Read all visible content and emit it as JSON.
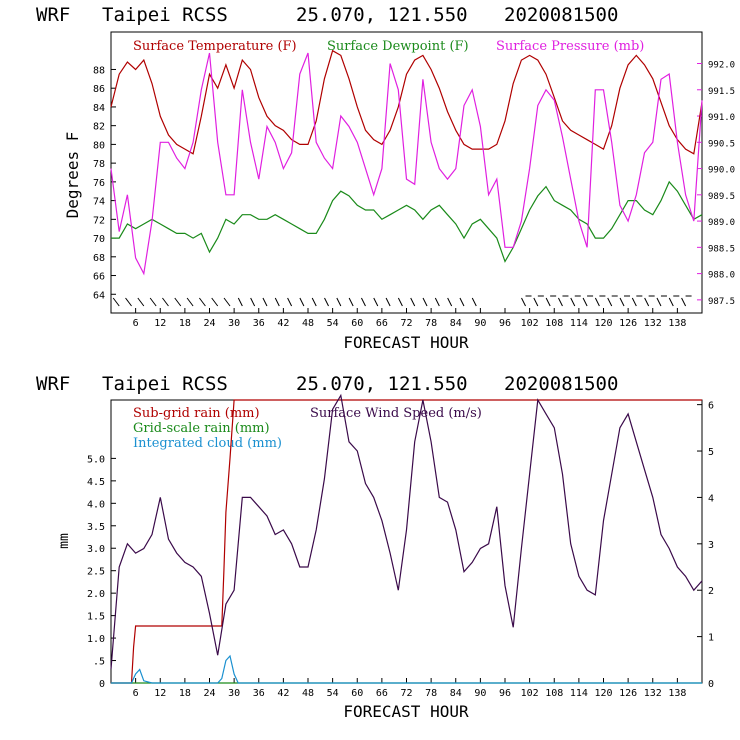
{
  "header": {
    "model": "WRF",
    "station": "Taipei RCSS",
    "coords": "25.070, 121.550",
    "init": "2020081500"
  },
  "colors": {
    "temperature": "#b00000",
    "dewpoint": "#1a8a1a",
    "pressure": "#e020e0",
    "subgrid_rain": "#b00000",
    "gridscale_rain": "#1a8a1a",
    "cloud": "#1a90d0",
    "wind": "#3a0a4a"
  },
  "chart_data": [
    {
      "type": "line",
      "title": "WRF Taipei RCSS 25.070, 121.550 2020081500",
      "xlabel": "FORECAST HOUR",
      "ylabel": "Degrees F",
      "xlim": [
        0,
        144
      ],
      "ylim": [
        62,
        92
      ],
      "y2lim": [
        987.25,
        992.6
      ],
      "xticks": [
        "6",
        "12",
        "18",
        "24",
        "30",
        "36",
        "42",
        "48",
        "54",
        "60",
        "66",
        "72",
        "78",
        "84",
        "90",
        "96",
        "102",
        "108",
        "114",
        "120",
        "126",
        "132",
        "138"
      ],
      "yticks": [
        "64",
        "66",
        "68",
        "70",
        "72",
        "74",
        "76",
        "78",
        "80",
        "82",
        "84",
        "86",
        "88"
      ],
      "y2ticks": [
        "987.5",
        "988.0",
        "988.5",
        "989.0",
        "989.5",
        "990.0",
        "990.5",
        "991.0",
        "991.5",
        "992.0"
      ],
      "legend": [
        "Surface Temperature (F)",
        "Surface Dewpoint (F)",
        "Surface Pressure (mb)"
      ],
      "wind_barbs_note": "wind barbs along bottom",
      "series": [
        {
          "name": "Surface Temperature (F)",
          "axis": "left",
          "x": [
            0,
            2,
            4,
            6,
            8,
            10,
            12,
            14,
            16,
            18,
            20,
            22,
            24,
            26,
            28,
            30,
            32,
            34,
            36,
            38,
            40,
            42,
            44,
            46,
            48,
            50,
            52,
            54,
            56,
            58,
            60,
            62,
            64,
            66,
            68,
            70,
            72,
            74,
            76,
            78,
            80,
            82,
            84,
            86,
            88,
            90,
            92,
            94,
            96,
            98,
            100,
            102,
            104,
            106,
            108,
            110,
            112,
            114,
            116,
            118,
            120,
            122,
            124,
            126,
            128,
            130,
            132,
            134,
            136,
            138,
            140,
            142,
            144
          ],
          "values": [
            84,
            87.5,
            88.8,
            88,
            89,
            86.5,
            83,
            81,
            80,
            79.5,
            79,
            83,
            87.5,
            86,
            88.5,
            86,
            89,
            88,
            85,
            83,
            82,
            81.5,
            80.5,
            80,
            80,
            82.5,
            87,
            90,
            89.5,
            87,
            84,
            81.5,
            80.5,
            80,
            81.5,
            84,
            87.5,
            89,
            89.5,
            88,
            86,
            83.5,
            81.5,
            80,
            79.5,
            79.5,
            79.5,
            80,
            82.5,
            86.5,
            89,
            89.5,
            89,
            87.5,
            85,
            82.5,
            81.5,
            81,
            80.5,
            80,
            79.5,
            82,
            86,
            88.5,
            89.5,
            88.5,
            87,
            84.5,
            82,
            80.5,
            79.5,
            79,
            84.5
          ]
        },
        {
          "name": "Surface Dewpoint (F)",
          "axis": "left",
          "x": [
            0,
            2,
            4,
            6,
            8,
            10,
            12,
            14,
            16,
            18,
            20,
            22,
            24,
            26,
            28,
            30,
            32,
            34,
            36,
            38,
            40,
            42,
            44,
            46,
            48,
            50,
            52,
            54,
            56,
            58,
            60,
            62,
            64,
            66,
            68,
            70,
            72,
            74,
            76,
            78,
            80,
            82,
            84,
            86,
            88,
            90,
            92,
            94,
            96,
            98,
            100,
            102,
            104,
            106,
            108,
            110,
            112,
            114,
            116,
            118,
            120,
            122,
            124,
            126,
            128,
            130,
            132,
            134,
            136,
            138,
            140,
            142,
            144
          ],
          "values": [
            70,
            70,
            71.5,
            71,
            71.5,
            72,
            71.5,
            71,
            70.5,
            70.5,
            70,
            70.5,
            68.5,
            70,
            72,
            71.5,
            72.5,
            72.5,
            72,
            72,
            72.5,
            72,
            71.5,
            71,
            70.5,
            70.5,
            72,
            74,
            75,
            74.5,
            73.5,
            73,
            73,
            72,
            72.5,
            73,
            73.5,
            73,
            72,
            73,
            73.5,
            72.5,
            71.5,
            70,
            71.5,
            72,
            71,
            70,
            67.5,
            69,
            71,
            73,
            74.5,
            75.5,
            74,
            73.5,
            73,
            72,
            71.5,
            70,
            70,
            71,
            72.5,
            74,
            74,
            73,
            72.5,
            74,
            76,
            75,
            73.5,
            72,
            72.5
          ]
        },
        {
          "name": "Surface Pressure (mb)",
          "axis": "right",
          "x": [
            0,
            2,
            4,
            6,
            8,
            10,
            12,
            14,
            16,
            18,
            20,
            22,
            24,
            26,
            28,
            30,
            32,
            34,
            36,
            38,
            40,
            42,
            44,
            46,
            48,
            50,
            52,
            54,
            56,
            58,
            60,
            62,
            64,
            66,
            68,
            70,
            72,
            74,
            76,
            78,
            80,
            82,
            84,
            86,
            88,
            90,
            92,
            94,
            96,
            98,
            100,
            102,
            104,
            106,
            108,
            110,
            112,
            114,
            116,
            118,
            120,
            122,
            124,
            126,
            128,
            130,
            132,
            134,
            136,
            138,
            140,
            142,
            144
          ],
          "values": [
            990,
            988.8,
            989.5,
            988.3,
            988,
            989,
            990.5,
            990.5,
            990.2,
            990,
            990.5,
            991.5,
            992.2,
            990.5,
            989.5,
            989.5,
            991.5,
            990.5,
            989.8,
            990.8,
            990.5,
            990,
            990.3,
            991.8,
            992.2,
            990.5,
            990.2,
            990,
            991,
            990.8,
            990.5,
            990,
            989.5,
            990,
            992,
            991.5,
            989.8,
            989.7,
            991.7,
            990.5,
            990,
            989.8,
            990,
            991.2,
            991.5,
            990.8,
            989.5,
            989.8,
            988.5,
            988.5,
            989,
            990,
            991.2,
            991.5,
            991.3,
            990.6,
            989.8,
            989,
            988.5,
            991.5,
            991.5,
            990.5,
            989.3,
            989,
            989.5,
            990.3,
            990.5,
            991.7,
            991.8,
            990.5,
            989.5,
            989,
            991.3
          ]
        }
      ]
    },
    {
      "type": "line",
      "title": "WRF Taipei RCSS 25.070, 121.550 2020081500",
      "xlabel": "FORECAST HOUR",
      "ylabel": "mm",
      "xlim": [
        0,
        144
      ],
      "ylim": [
        0,
        6.3
      ],
      "y2lim": [
        0,
        6.1
      ],
      "xticks": [
        "6",
        "12",
        "18",
        "24",
        "30",
        "36",
        "42",
        "48",
        "54",
        "60",
        "66",
        "72",
        "78",
        "84",
        "90",
        "96",
        "102",
        "108",
        "114",
        "120",
        "126",
        "132",
        "138"
      ],
      "yticks": [
        "0",
        ".5",
        "1.0",
        "1.5",
        "2.0",
        "2.5",
        "3.0",
        "3.5",
        "4.0",
        "4.5",
        "5.0"
      ],
      "y2ticks": [
        "0",
        "1",
        "2",
        "3",
        "4",
        "5",
        "6"
      ],
      "legend": [
        "Sub-grid rain (mm)",
        "Grid-scale rain (mm)",
        "Integrated cloud (mm)",
        "Surface Wind Speed (m/s)"
      ],
      "series": [
        {
          "name": "Sub-grid rain (mm)",
          "axis": "left",
          "x": [
            0,
            5,
            5.5,
            6,
            27,
            27.5,
            28,
            29,
            30,
            144
          ],
          "values": [
            0,
            0,
            0.8,
            1.27,
            1.27,
            2.5,
            3.8,
            5.0,
            6.3,
            6.3
          ]
        },
        {
          "name": "Grid-scale rain (mm)",
          "axis": "left",
          "x": [
            0,
            144
          ],
          "values": [
            0,
            0
          ]
        },
        {
          "name": "Integrated cloud (mm)",
          "axis": "left",
          "x": [
            0,
            5,
            6,
            7,
            8,
            10,
            26,
            27,
            28,
            29,
            30,
            31,
            144
          ],
          "values": [
            0,
            0,
            0.2,
            0.3,
            0.05,
            0,
            0,
            0.1,
            0.5,
            0.6,
            0.2,
            0,
            0
          ]
        },
        {
          "name": "Surface Wind Speed (m/s)",
          "axis": "right",
          "x": [
            0,
            2,
            4,
            6,
            8,
            10,
            12,
            14,
            16,
            18,
            20,
            22,
            24,
            26,
            28,
            30,
            32,
            34,
            36,
            38,
            40,
            42,
            44,
            46,
            48,
            50,
            52,
            54,
            56,
            58,
            60,
            62,
            64,
            66,
            68,
            70,
            72,
            74,
            76,
            78,
            80,
            82,
            84,
            86,
            88,
            90,
            92,
            94,
            96,
            98,
            100,
            102,
            104,
            106,
            108,
            110,
            112,
            114,
            116,
            118,
            120,
            122,
            124,
            126,
            128,
            130,
            132,
            134,
            136,
            138,
            140,
            142,
            144
          ],
          "values": [
            0.3,
            2.5,
            3,
            2.8,
            2.9,
            3.2,
            4,
            3.1,
            2.8,
            2.6,
            2.5,
            2.3,
            1.5,
            0.6,
            1.7,
            2,
            4,
            4,
            3.8,
            3.6,
            3.2,
            3.3,
            3.0,
            2.5,
            2.5,
            3.3,
            4.4,
            5.9,
            6.2,
            5.2,
            5.0,
            4.3,
            4.0,
            3.5,
            2.8,
            2.0,
            3.3,
            5.2,
            6.1,
            5.2,
            4.0,
            3.9,
            3.3,
            2.4,
            2.6,
            2.9,
            3.0,
            3.8,
            2.1,
            1.2,
            2.9,
            4.5,
            6.1,
            5.8,
            5.5,
            4.5,
            3.0,
            2.3,
            2.0,
            1.9,
            3.5,
            4.5,
            5.5,
            5.8,
            5.2,
            4.6,
            4.0,
            3.2,
            2.9,
            2.5,
            2.3,
            2.0,
            2.2
          ]
        }
      ]
    }
  ]
}
